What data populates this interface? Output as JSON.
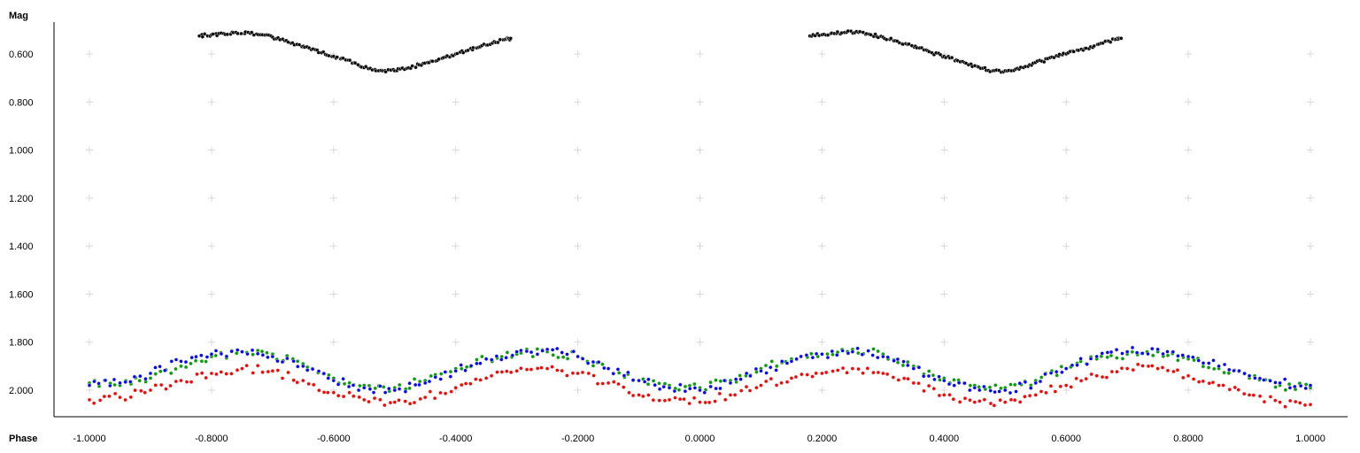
{
  "chart_data": {
    "type": "scatter",
    "title": "",
    "ylabel": "Mag",
    "xlabel": "Phase",
    "x_ticks": [
      "-1.0000",
      "-0.8000",
      "-0.6000",
      "-0.4000",
      "-0.2000",
      "0.0000",
      "0.2000",
      "0.4000",
      "0.6000",
      "0.8000",
      "1.0000"
    ],
    "y_ticks": [
      "0.600",
      "0.800",
      "1.000",
      "1.200",
      "1.400",
      "1.600",
      "1.800",
      "2.000"
    ],
    "xlim": [
      -1.0,
      1.0
    ],
    "ylim": [
      0.5,
      2.1
    ],
    "y_inverted": true,
    "grid": "cross markers",
    "series": [
      {
        "color": "#000000",
        "points": [
          [
            -0.82,
            0.525
          ],
          [
            -0.8,
            0.52
          ],
          [
            -0.78,
            0.515
          ],
          [
            -0.76,
            0.51
          ],
          [
            -0.74,
            0.51
          ],
          [
            -0.72,
            0.52
          ],
          [
            -0.7,
            0.53
          ],
          [
            -0.68,
            0.545
          ],
          [
            -0.66,
            0.56
          ],
          [
            -0.64,
            0.575
          ],
          [
            -0.62,
            0.595
          ],
          [
            -0.6,
            0.61
          ],
          [
            -0.58,
            0.625
          ],
          [
            -0.56,
            0.645
          ],
          [
            -0.54,
            0.66
          ],
          [
            -0.52,
            0.67
          ],
          [
            -0.5,
            0.67
          ],
          [
            -0.48,
            0.66
          ],
          [
            -0.46,
            0.645
          ],
          [
            -0.44,
            0.63
          ],
          [
            -0.42,
            0.615
          ],
          [
            -0.4,
            0.6
          ],
          [
            -0.38,
            0.585
          ],
          [
            -0.36,
            0.57
          ],
          [
            -0.34,
            0.555
          ],
          [
            -0.32,
            0.54
          ],
          [
            -0.31,
            0.535
          ],
          [
            0.18,
            0.525
          ],
          [
            0.2,
            0.52
          ],
          [
            0.22,
            0.515
          ],
          [
            0.24,
            0.51
          ],
          [
            0.26,
            0.51
          ],
          [
            0.28,
            0.52
          ],
          [
            0.3,
            0.53
          ],
          [
            0.32,
            0.545
          ],
          [
            0.34,
            0.56
          ],
          [
            0.36,
            0.575
          ],
          [
            0.38,
            0.595
          ],
          [
            0.4,
            0.61
          ],
          [
            0.42,
            0.625
          ],
          [
            0.44,
            0.645
          ],
          [
            0.46,
            0.66
          ],
          [
            0.48,
            0.67
          ],
          [
            0.5,
            0.67
          ],
          [
            0.52,
            0.66
          ],
          [
            0.54,
            0.645
          ],
          [
            0.56,
            0.63
          ],
          [
            0.58,
            0.615
          ],
          [
            0.6,
            0.6
          ],
          [
            0.62,
            0.585
          ],
          [
            0.64,
            0.57
          ],
          [
            0.66,
            0.555
          ],
          [
            0.68,
            0.54
          ],
          [
            0.69,
            0.535
          ]
        ]
      },
      {
        "color": "#ff0000",
        "points": [
          [
            -1.0,
            2.04
          ],
          [
            -0.95,
            2.03
          ],
          [
            -0.9,
            2.0
          ],
          [
            -0.85,
            1.96
          ],
          [
            -0.8,
            1.93
          ],
          [
            -0.75,
            1.91
          ],
          [
            -0.7,
            1.92
          ],
          [
            -0.65,
            1.96
          ],
          [
            -0.6,
            2.01
          ],
          [
            -0.55,
            2.04
          ],
          [
            -0.5,
            2.05
          ],
          [
            -0.45,
            2.03
          ],
          [
            -0.4,
            1.99
          ],
          [
            -0.35,
            1.95
          ],
          [
            -0.3,
            1.92
          ],
          [
            -0.25,
            1.91
          ],
          [
            -0.2,
            1.93
          ],
          [
            -0.15,
            1.97
          ],
          [
            -0.1,
            2.02
          ],
          [
            -0.05,
            2.04
          ],
          [
            0.0,
            2.05
          ],
          [
            0.05,
            2.02
          ],
          [
            0.1,
            1.98
          ],
          [
            0.15,
            1.95
          ],
          [
            0.2,
            1.93
          ],
          [
            0.25,
            1.91
          ],
          [
            0.3,
            1.93
          ],
          [
            0.35,
            1.97
          ],
          [
            0.4,
            2.02
          ],
          [
            0.45,
            2.05
          ],
          [
            0.5,
            2.05
          ],
          [
            0.55,
            2.02
          ],
          [
            0.6,
            1.98
          ],
          [
            0.65,
            1.94
          ],
          [
            0.7,
            1.91
          ],
          [
            0.75,
            1.91
          ],
          [
            0.8,
            1.94
          ],
          [
            0.85,
            1.98
          ],
          [
            0.9,
            2.02
          ],
          [
            0.95,
            2.05
          ],
          [
            1.0,
            2.06
          ]
        ]
      },
      {
        "color": "#00a000",
        "points": [
          [
            -1.0,
            1.97
          ],
          [
            -0.95,
            1.98
          ],
          [
            -0.9,
            1.95
          ],
          [
            -0.85,
            1.9
          ],
          [
            -0.8,
            1.86
          ],
          [
            -0.75,
            1.84
          ],
          [
            -0.7,
            1.85
          ],
          [
            -0.65,
            1.89
          ],
          [
            -0.6,
            1.95
          ],
          [
            -0.55,
            1.98
          ],
          [
            -0.5,
            1.99
          ],
          [
            -0.45,
            1.96
          ],
          [
            -0.4,
            1.91
          ],
          [
            -0.35,
            1.87
          ],
          [
            -0.3,
            1.85
          ],
          [
            -0.25,
            1.84
          ],
          [
            -0.2,
            1.86
          ],
          [
            -0.15,
            1.91
          ],
          [
            -0.1,
            1.96
          ],
          [
            -0.05,
            1.98
          ],
          [
            0.0,
            1.99
          ],
          [
            0.05,
            1.96
          ],
          [
            0.1,
            1.91
          ],
          [
            0.15,
            1.87
          ],
          [
            0.2,
            1.85
          ],
          [
            0.25,
            1.83
          ],
          [
            0.3,
            1.85
          ],
          [
            0.35,
            1.9
          ],
          [
            0.4,
            1.95
          ],
          [
            0.45,
            1.98
          ],
          [
            0.5,
            1.99
          ],
          [
            0.55,
            1.96
          ],
          [
            0.6,
            1.91
          ],
          [
            0.65,
            1.87
          ],
          [
            0.7,
            1.85
          ],
          [
            0.75,
            1.84
          ],
          [
            0.8,
            1.87
          ],
          [
            0.85,
            1.91
          ],
          [
            0.9,
            1.95
          ],
          [
            0.95,
            1.98
          ],
          [
            1.0,
            1.99
          ]
        ]
      },
      {
        "color": "#0000ff",
        "points": [
          [
            -1.0,
            1.98
          ],
          [
            -0.95,
            1.97
          ],
          [
            -0.9,
            1.93
          ],
          [
            -0.85,
            1.88
          ],
          [
            -0.8,
            1.85
          ],
          [
            -0.75,
            1.84
          ],
          [
            -0.7,
            1.86
          ],
          [
            -0.65,
            1.9
          ],
          [
            -0.6,
            1.96
          ],
          [
            -0.55,
            1.99
          ],
          [
            -0.5,
            2.0
          ],
          [
            -0.45,
            1.97
          ],
          [
            -0.4,
            1.92
          ],
          [
            -0.35,
            1.87
          ],
          [
            -0.3,
            1.84
          ],
          [
            -0.25,
            1.83
          ],
          [
            -0.2,
            1.86
          ],
          [
            -0.15,
            1.91
          ],
          [
            -0.1,
            1.96
          ],
          [
            -0.05,
            1.99
          ],
          [
            0.0,
            2.0
          ],
          [
            0.05,
            1.97
          ],
          [
            0.1,
            1.92
          ],
          [
            0.15,
            1.88
          ],
          [
            0.2,
            1.85
          ],
          [
            0.25,
            1.84
          ],
          [
            0.3,
            1.86
          ],
          [
            0.35,
            1.91
          ],
          [
            0.4,
            1.96
          ],
          [
            0.45,
            1.99
          ],
          [
            0.5,
            2.0
          ],
          [
            0.55,
            1.97
          ],
          [
            0.6,
            1.91
          ],
          [
            0.65,
            1.86
          ],
          [
            0.7,
            1.84
          ],
          [
            0.75,
            1.83
          ],
          [
            0.8,
            1.86
          ],
          [
            0.85,
            1.9
          ],
          [
            0.9,
            1.94
          ],
          [
            0.95,
            1.97
          ],
          [
            1.0,
            1.98
          ]
        ]
      }
    ]
  }
}
